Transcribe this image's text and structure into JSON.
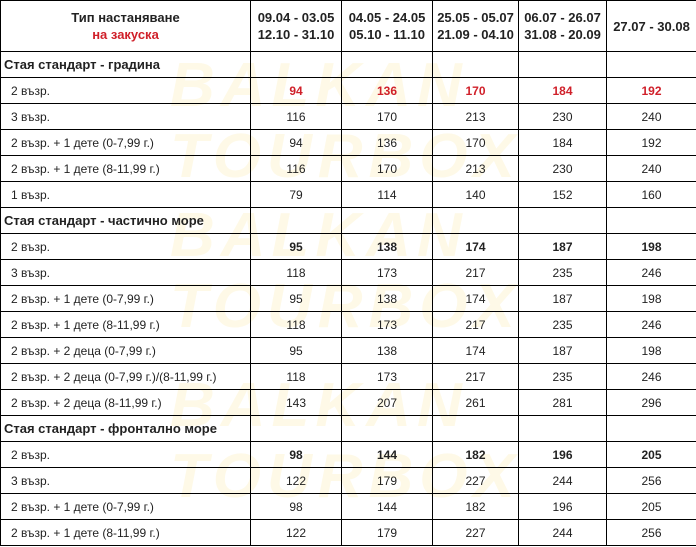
{
  "header": {
    "type_label": "Тип настаняване",
    "board_label": "на закуска",
    "board_color": "#d0202a",
    "periods": [
      [
        "09.04 - 03.05",
        "12.10 - 31.10"
      ],
      [
        "04.05 - 24.05",
        "05.10 - 11.10"
      ],
      [
        "25.05 - 05.07",
        "21.09 - 04.10"
      ],
      [
        "06.07 - 26.07",
        "31.08 - 20.09"
      ],
      [
        "27.07 - 30.08",
        ""
      ]
    ]
  },
  "watermark": "BALKAN TOURBOX",
  "sections": [
    {
      "title": "Стая стандарт - градина",
      "rows": [
        {
          "label": "2 възр.",
          "style": "red",
          "values": [
            "94",
            "136",
            "170",
            "184",
            "192"
          ]
        },
        {
          "label": "3 възр.",
          "style": "",
          "values": [
            "116",
            "170",
            "213",
            "230",
            "240"
          ]
        },
        {
          "label": "2 възр. + 1 дете (0-7,99 г.)",
          "style": "",
          "values": [
            "94",
            "136",
            "170",
            "184",
            "192"
          ]
        },
        {
          "label": "2 възр. + 1 дете (8-11,99 г.)",
          "style": "",
          "values": [
            "116",
            "170",
            "213",
            "230",
            "240"
          ]
        },
        {
          "label": "1 възр.",
          "style": "",
          "values": [
            "79",
            "114",
            "140",
            "152",
            "160"
          ]
        }
      ]
    },
    {
      "title": "Стая стандарт - частично море",
      "rows": [
        {
          "label": "2 възр.",
          "style": "bold",
          "values": [
            "95",
            "138",
            "174",
            "187",
            "198"
          ]
        },
        {
          "label": "3 възр.",
          "style": "",
          "values": [
            "118",
            "173",
            "217",
            "235",
            "246"
          ]
        },
        {
          "label": "2 възр. + 1 дете (0-7,99 г.)",
          "style": "",
          "values": [
            "95",
            "138",
            "174",
            "187",
            "198"
          ]
        },
        {
          "label": "2 възр. + 1 дете (8-11,99 г.)",
          "style": "",
          "values": [
            "118",
            "173",
            "217",
            "235",
            "246"
          ]
        },
        {
          "label": "2 възр. + 2 деца (0-7,99 г.)",
          "style": "",
          "values": [
            "95",
            "138",
            "174",
            "187",
            "198"
          ]
        },
        {
          "label": "2 възр. + 2 деца (0-7,99 г.)/(8-11,99 г.)",
          "style": "",
          "values": [
            "118",
            "173",
            "217",
            "235",
            "246"
          ]
        },
        {
          "label": "2 възр. + 2 деца (8-11,99 г.)",
          "style": "",
          "values": [
            "143",
            "207",
            "261",
            "281",
            "296"
          ]
        }
      ]
    },
    {
      "title": "Стая стандарт - фронтално море",
      "rows": [
        {
          "label": "2 възр.",
          "style": "bold",
          "values": [
            "98",
            "144",
            "182",
            "196",
            "205"
          ]
        },
        {
          "label": "3 възр.",
          "style": "",
          "values": [
            "122",
            "179",
            "227",
            "244",
            "256"
          ]
        },
        {
          "label": "2 възр. + 1 дете (0-7,99 г.)",
          "style": "",
          "values": [
            "98",
            "144",
            "182",
            "196",
            "205"
          ]
        },
        {
          "label": "2 възр. + 1 дете (8-11,99 г.)",
          "style": "",
          "values": [
            "122",
            "179",
            "227",
            "244",
            "256"
          ]
        }
      ]
    }
  ]
}
